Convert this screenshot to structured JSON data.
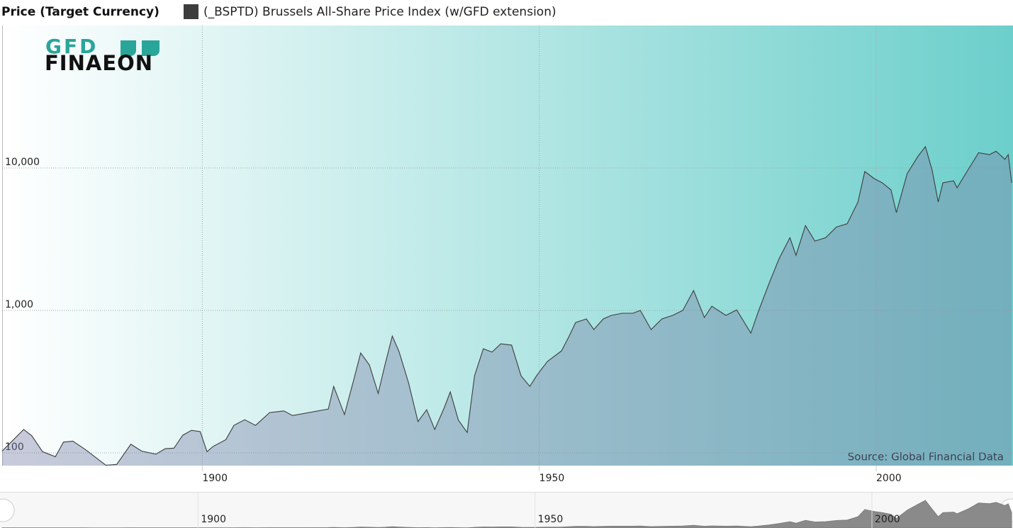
{
  "chart_data": {
    "type": "area",
    "y_label": "Price (Target Currency)",
    "source": "Source: Global Financial Data",
    "logo": {
      "top": "GFD",
      "bottom": "FINAEON"
    },
    "log_y": true,
    "grid": true,
    "xlim": [
      1870.3,
      2020.3
    ],
    "ylim": [
      81.4,
      100000
    ],
    "xticks": [
      1900,
      1950,
      2000
    ],
    "yticks": [
      100,
      {
        "value": 1000,
        "label": "1,000"
      },
      {
        "value": 10000,
        "label": "10,000"
      }
    ],
    "x": [
      1870.3,
      1873.5,
      1874.7,
      1876.3,
      1878.2,
      1879.4,
      1880.8,
      1882.6,
      1885.7,
      1887.3,
      1889.4,
      1891.0,
      1893.1,
      1894.5,
      1895.8,
      1897.1,
      1898.4,
      1899.7,
      1900.7,
      1901.6,
      1903.5,
      1904.7,
      1906.3,
      1907.9,
      1910.0,
      1912.1,
      1913.4,
      1918.7,
      1919.5,
      1921.1,
      1922.5,
      1923.5,
      1924.8,
      1926.1,
      1927.1,
      1928.2,
      1929.2,
      1930.6,
      1932.0,
      1933.3,
      1934.5,
      1935.9,
      1936.8,
      1938.0,
      1939.3,
      1940.4,
      1941.7,
      1943.0,
      1944.3,
      1945.9,
      1947.3,
      1948.6,
      1949.6,
      1951.2,
      1953.3,
      1954.4,
      1955.4,
      1957.0,
      1958.1,
      1959.5,
      1960.7,
      1962.3,
      1963.9,
      1965.0,
      1966.6,
      1968.2,
      1969.8,
      1971.3,
      1972.9,
      1974.5,
      1975.6,
      1977.7,
      1979.3,
      1981.4,
      1982.5,
      1984.1,
      1985.6,
      1987.2,
      1988.1,
      1989.5,
      1990.9,
      1992.5,
      1994.1,
      1995.7,
      1997.3,
      1998.3,
      1999.7,
      2000.9,
      2002.2,
      2003.0,
      2004.6,
      2006.2,
      2007.3,
      2008.3,
      2009.2,
      2009.9,
      2011.5,
      2012.0,
      2013.6,
      2015.2,
      2016.8,
      2017.8,
      2019.1,
      2019.6,
      2020.1
    ],
    "series": [
      {
        "name": "(_BSPTD) Brussels All-Share Price Index (w/GFD extension)",
        "color": "#3d3d3d",
        "values": [
          103,
          146,
          132,
          102,
          94,
          119,
          121,
          106,
          82,
          83,
          115,
          103,
          98,
          107,
          108,
          133,
          144,
          141,
          102,
          111,
          124,
          156,
          171,
          156,
          192,
          197,
          183,
          203,
          293,
          186,
          329,
          503,
          414,
          262,
          414,
          661,
          514,
          311,
          166,
          201,
          146,
          207,
          268,
          170,
          139,
          348,
          538,
          510,
          583,
          571,
          348,
          293,
          348,
          438,
          520,
          655,
          822,
          872,
          734,
          872,
          923,
          955,
          955,
          1000,
          734,
          872,
          923,
          1000,
          1380,
          892,
          1070,
          923,
          1010,
          693,
          978,
          1550,
          2310,
          3240,
          2440,
          3940,
          3070,
          3240,
          3850,
          4060,
          5770,
          9440,
          8420,
          7860,
          7020,
          4860,
          9120,
          12100,
          14100,
          9660,
          5770,
          7860,
          8130,
          7260,
          9660,
          12800,
          12400,
          13100,
          11500,
          12400,
          7860
        ]
      }
    ]
  }
}
